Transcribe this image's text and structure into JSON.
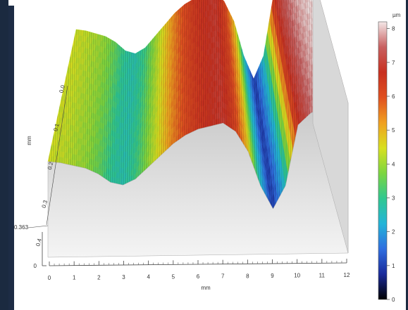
{
  "chart_data": {
    "type": "surface-3d",
    "x_axis": {
      "label": "mm",
      "ticks": [
        "0",
        "1",
        "2",
        "3",
        "4",
        "5",
        "6",
        "7",
        "8",
        "9",
        "10",
        "11",
        "12"
      ],
      "range": [
        0,
        12
      ]
    },
    "y_axis": {
      "label": "mm",
      "ticks": [
        "0.0",
        "0.1",
        "0.2",
        "0.3",
        "0.4"
      ],
      "range": [
        0,
        0.363
      ]
    },
    "z_axis": {
      "ticks": [
        "0"
      ],
      "marker": "0.363"
    },
    "colorbar": {
      "unit": "µm",
      "min": 0,
      "max": 8.2,
      "ticks": [
        "0",
        "1",
        "2",
        "3",
        "4",
        "5",
        "6",
        "7",
        "8"
      ],
      "colors": [
        "#000000",
        "#1a2a9a",
        "#2f6ee0",
        "#22b4d8",
        "#30c890",
        "#7cd640",
        "#d8e020",
        "#f0a020",
        "#e05020",
        "#c83020",
        "#c86060",
        "#f4e8e8"
      ]
    },
    "profile": {
      "x_mm": [
        0,
        0.5,
        1,
        1.5,
        2,
        2.5,
        3,
        3.5,
        4,
        4.5,
        5,
        5.5,
        6,
        6.5,
        7,
        7.5,
        8,
        8.5,
        9,
        9.5,
        10,
        10.5,
        11,
        11.5,
        12
      ],
      "height_um": [
        4.3,
        4.2,
        4.0,
        3.8,
        3.4,
        2.8,
        2.6,
        3.0,
        3.8,
        4.6,
        5.4,
        6.0,
        6.4,
        6.6,
        6.8,
        6.2,
        4.8,
        2.4,
        0.8,
        2.4,
        6.6,
        7.4,
        7.8,
        8.0,
        8.1
      ]
    }
  }
}
